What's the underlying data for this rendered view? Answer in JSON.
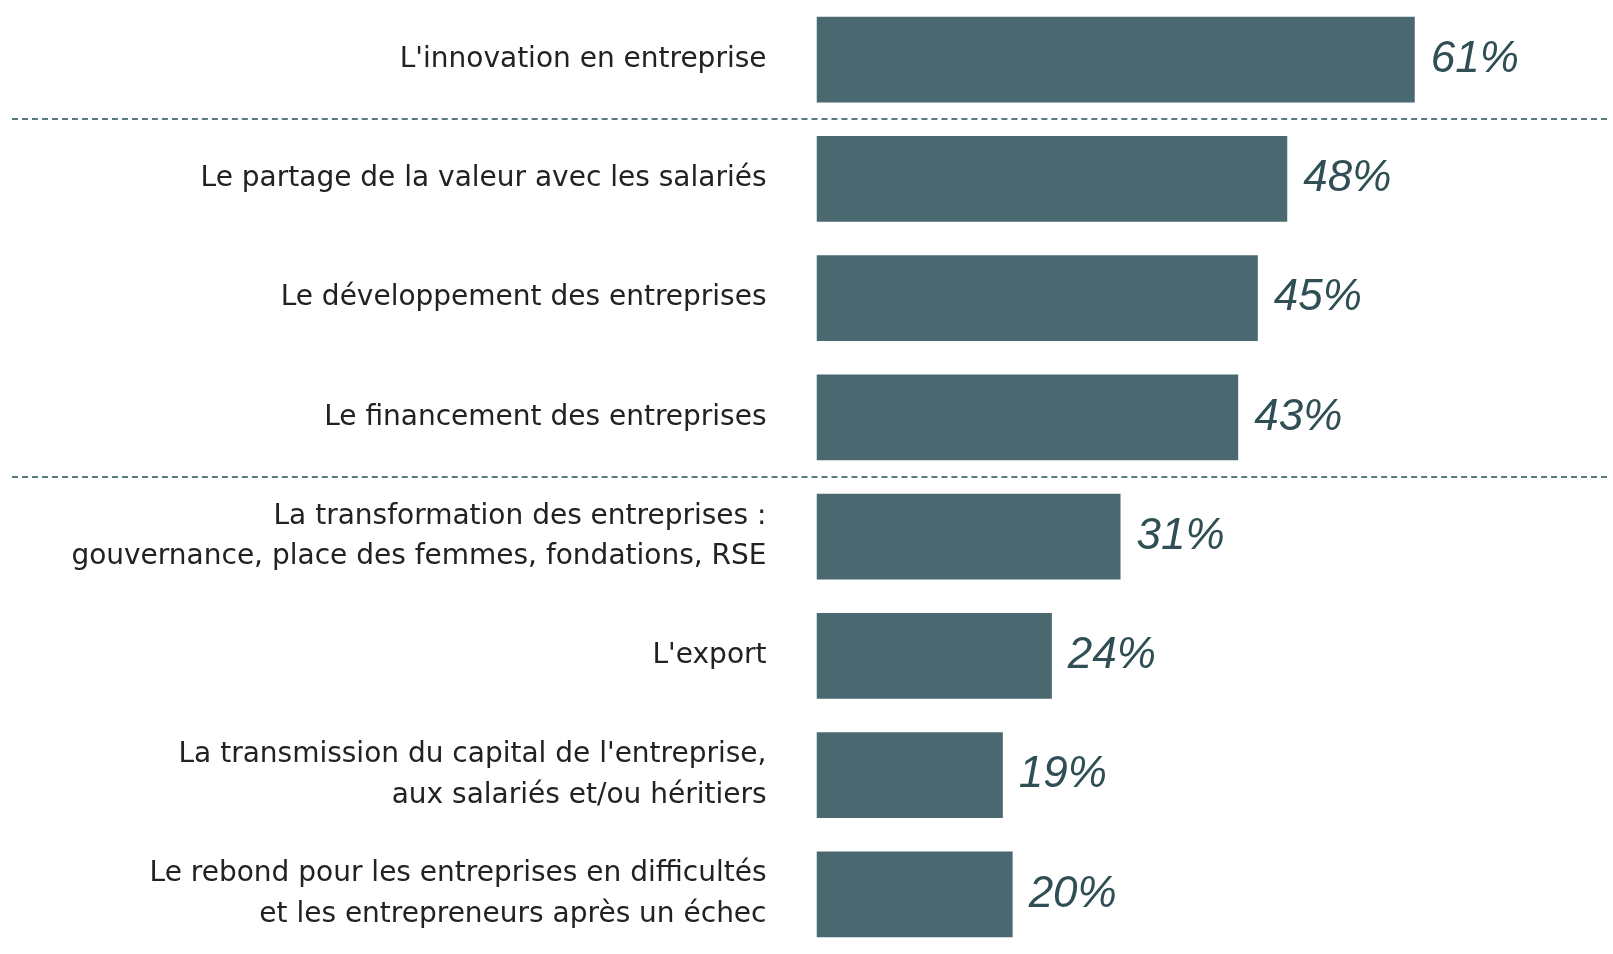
{
  "chart_data": {
    "type": "bar",
    "orientation": "horizontal",
    "categories": [
      "L'innovation en entreprise",
      "Le partage de la valeur avec les salariés",
      "Le développement des entreprises",
      "Le financement des entreprises",
      "La transformation des entreprises :\ngouvernance, place des femmes, fondations, RSE",
      "L'export",
      "La transmission du capital de l'entreprise,\naux salariés et/ou héritiers",
      "Le rebond pour les entreprises en difficultés\net les entrepreneurs après un échec"
    ],
    "values": [
      61,
      48,
      45,
      43,
      31,
      24,
      19,
      20
    ],
    "value_labels": [
      "61%",
      "48%",
      "45%",
      "43%",
      "31%",
      "24%",
      "19%",
      "20%"
    ],
    "color": "#4a6870",
    "tick_labels": "y",
    "legend": false
  }
}
